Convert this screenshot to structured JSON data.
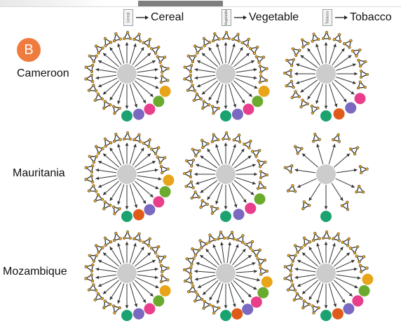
{
  "panel_label": "B",
  "legend": [
    {
      "swatch_text": "Cereal",
      "label": "Cereal"
    },
    {
      "swatch_text": "Vegetable",
      "label": "Vegetable"
    },
    {
      "swatch_text": "Tobacco",
      "label": "Tobacco"
    }
  ],
  "rows": [
    {
      "label": "Cameroon",
      "networks": [
        {
          "motifs": 17,
          "dots": [
            "#e8a51a",
            "#6aab2e",
            "#e83e8c",
            "#7b68c0",
            "#1aa370"
          ]
        },
        {
          "motifs": 17,
          "dots": [
            "#e8a51a",
            "#6aab2e",
            "#e83e8c",
            "#7b68c0",
            "#1aa370"
          ]
        },
        {
          "motifs": 16,
          "dots": [
            "#e83e8c",
            "#7b68c0",
            "#e05a1a",
            "#1aa370"
          ]
        }
      ]
    },
    {
      "label": "Mauritania",
      "networks": [
        {
          "motifs": 16,
          "dots": [
            "#e8a51a",
            "#6aab2e",
            "#e83e8c",
            "#7b68c0",
            "#e05a1a",
            "#1aa370"
          ]
        },
        {
          "motifs": 16,
          "dots": [
            "#6aab2e",
            "#e83e8c",
            "#7b68c0",
            "#1aa370"
          ]
        },
        {
          "motifs": 10,
          "dots": [
            "#1aa370"
          ]
        }
      ]
    },
    {
      "label": "Mozambique",
      "networks": [
        {
          "motifs": 17,
          "dots": [
            "#e8a51a",
            "#6aab2e",
            "#e83e8c",
            "#7b68c0",
            "#1aa370"
          ]
        },
        {
          "motifs": 17,
          "dots": [
            "#e8a51a",
            "#6aab2e",
            "#e83e8c",
            "#7b68c0",
            "#e05a1a",
            "#1aa370"
          ]
        },
        {
          "motifs": 16,
          "dots": [
            "#e8a51a",
            "#6aab2e",
            "#e83e8c",
            "#7b68c0",
            "#e05a1a",
            "#1aa370"
          ]
        }
      ]
    }
  ],
  "colors": {
    "hub": "#cccccc",
    "edge": "#333333",
    "motif_edge": "#333333",
    "motif_node": "#e8a51a",
    "badge": "#f07b3f"
  }
}
